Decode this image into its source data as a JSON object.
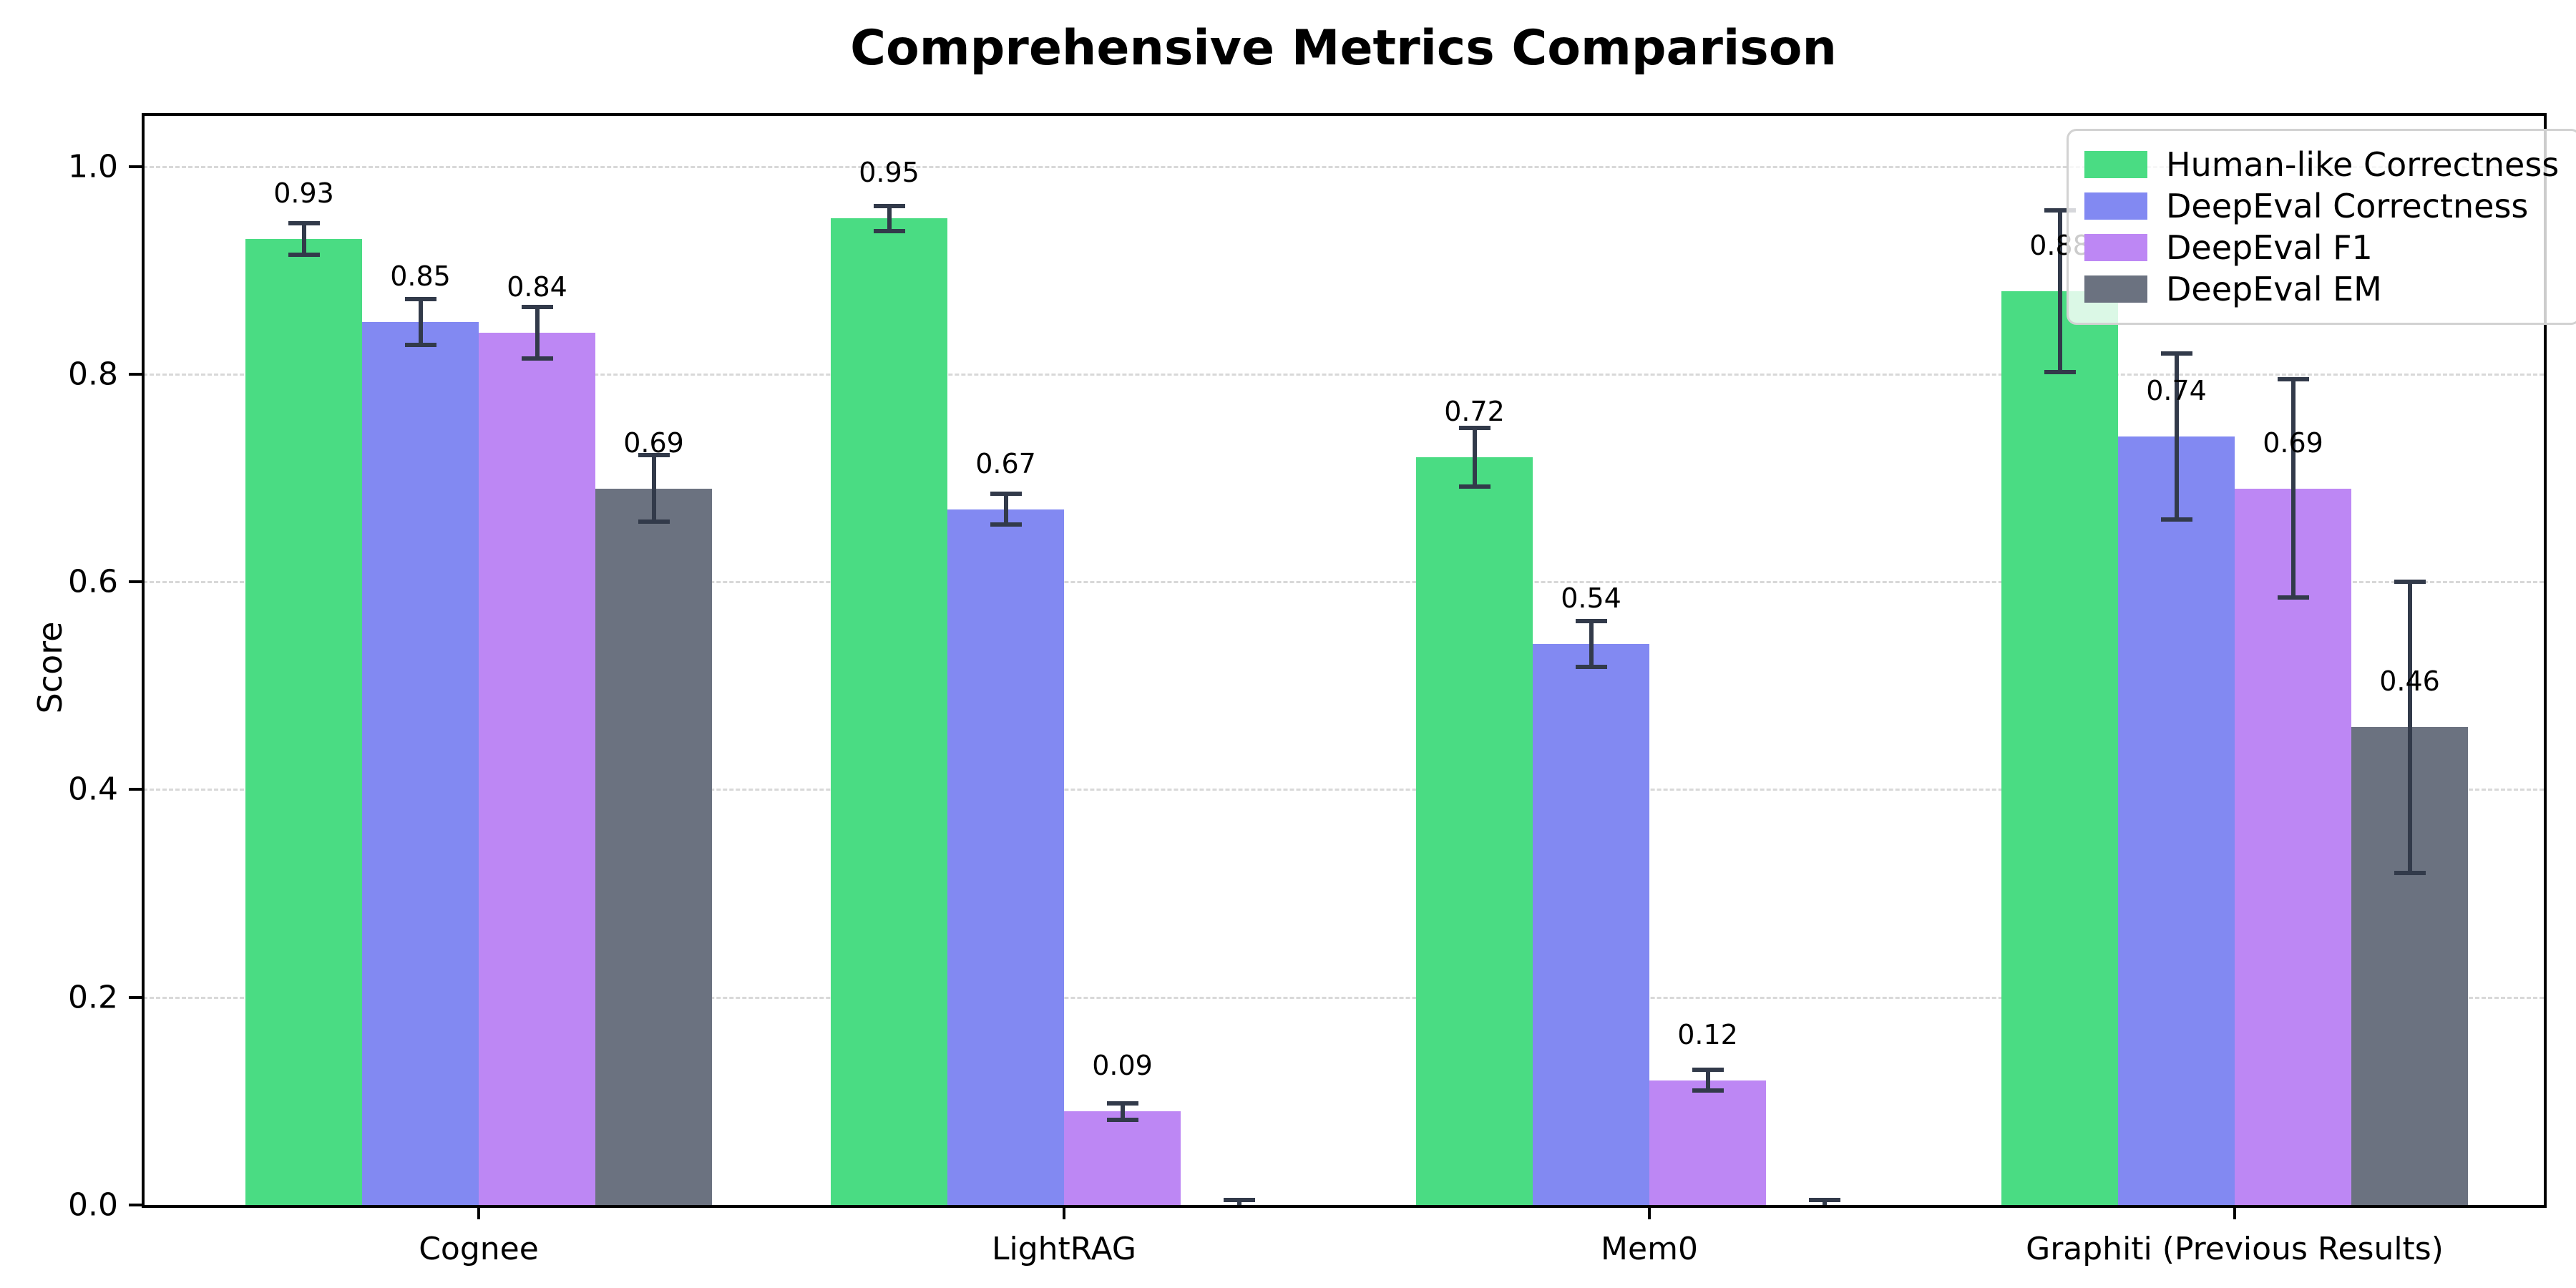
{
  "chart_data": {
    "type": "bar",
    "title": "Comprehensive Metrics Comparison",
    "xlabel": "",
    "ylabel": "Score",
    "categories": [
      "Cognee",
      "LightRAG",
      "Mem0",
      "Graphiti (Previous Results)"
    ],
    "series": [
      {
        "name": "Human-like Correctness",
        "color": "#4adc83",
        "values": [
          0.93,
          0.95,
          0.72,
          0.88
        ],
        "errors": [
          0.015,
          0.012,
          0.028,
          0.078
        ],
        "labels": [
          "0.93",
          "0.95",
          "0.72",
          "0.88"
        ]
      },
      {
        "name": "DeepEval Correctness",
        "color": "#8289f2",
        "values": [
          0.85,
          0.67,
          0.54,
          0.74
        ],
        "errors": [
          0.022,
          0.015,
          0.022,
          0.08
        ],
        "labels": [
          "0.85",
          "0.67",
          "0.54",
          "0.74"
        ]
      },
      {
        "name": "DeepEval F1",
        "color": "#bd87f4",
        "values": [
          0.84,
          0.09,
          0.12,
          0.69
        ],
        "errors": [
          0.025,
          0.008,
          0.01,
          0.105
        ],
        "labels": [
          "0.84",
          "0.09",
          "0.12",
          "0.69"
        ]
      },
      {
        "name": "DeepEval EM",
        "color": "#6b7280",
        "values": [
          0.69,
          0.0,
          0.0,
          0.46
        ],
        "errors": [
          0.032,
          0.005,
          0.005,
          0.14
        ],
        "labels": [
          "0.69",
          "",
          "",
          "0.46"
        ]
      }
    ],
    "yticks": [
      0.0,
      0.2,
      0.4,
      0.6,
      0.8,
      1.0
    ],
    "ytick_labels": [
      "0.0",
      "0.2",
      "0.4",
      "0.6",
      "0.8",
      "1.0"
    ],
    "ylim": [
      0,
      1.05
    ],
    "grid": "horizontal-dashed",
    "legend_position": "upper right",
    "error_bar_color": "#323a4a",
    "gridline_color": "#d8d8d8"
  }
}
